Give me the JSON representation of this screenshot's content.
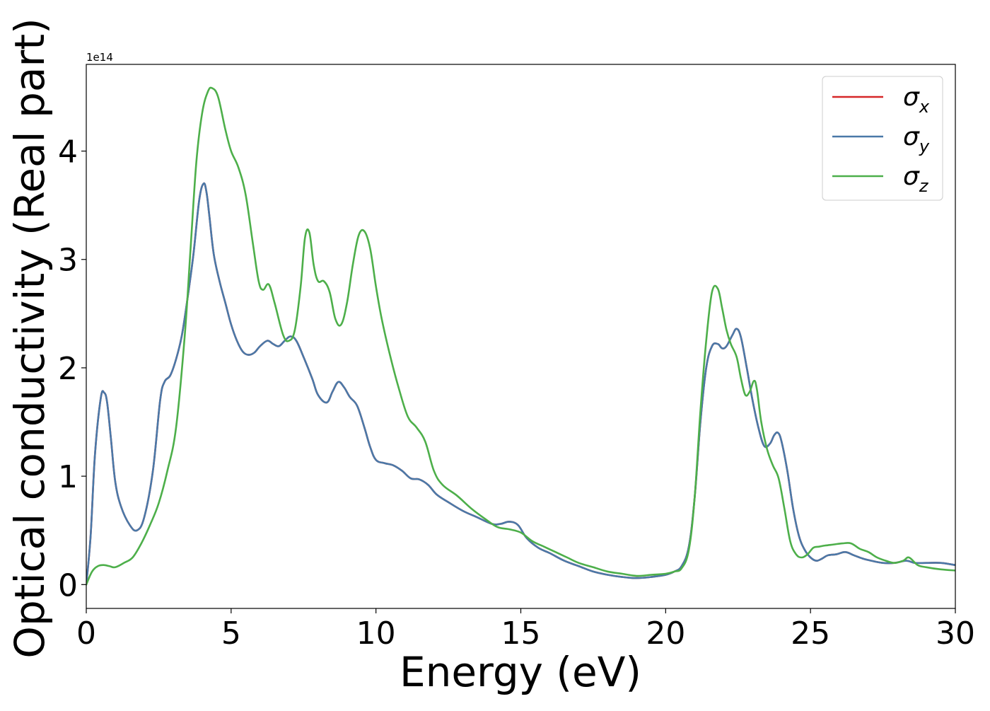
{
  "chart_data": {
    "type": "line",
    "xlabel": "Energy (eV)",
    "ylabel": "Optical conductivity (Real part)",
    "offset_text": "1e14",
    "scale": 100000000000000.0,
    "xlim": [
      0,
      30
    ],
    "ylim": [
      -0.22,
      4.8
    ],
    "xticks": [
      0,
      5,
      10,
      15,
      20,
      25,
      30
    ],
    "xtick_labels": [
      "0",
      "5",
      "10",
      "15",
      "20",
      "25",
      "30"
    ],
    "yticks": [
      0,
      1,
      2,
      3,
      4
    ],
    "ytick_labels": [
      "0",
      "1",
      "2",
      "3",
      "4"
    ],
    "grid": false,
    "legend_position": "top-right",
    "series": [
      {
        "name": "σx",
        "legend_base": "σ",
        "legend_sub": "x",
        "color": "#d62728",
        "x": [
          0,
          0.15,
          0.3,
          0.5,
          0.62,
          0.72,
          0.85,
          1.0,
          1.2,
          1.5,
          1.75,
          2.0,
          2.3,
          2.55,
          2.7,
          2.9,
          3.1,
          3.3,
          3.5,
          3.7,
          3.9,
          4.05,
          4.15,
          4.25,
          4.4,
          4.6,
          4.8,
          5.0,
          5.2,
          5.4,
          5.6,
          5.8,
          6.0,
          6.25,
          6.45,
          6.65,
          6.85,
          7.05,
          7.25,
          7.5,
          7.8,
          8.0,
          8.3,
          8.5,
          8.7,
          8.9,
          9.1,
          9.35,
          9.6,
          9.8,
          10.0,
          10.3,
          10.6,
          10.9,
          11.2,
          11.5,
          11.8,
          12.1,
          12.5,
          13.0,
          13.5,
          14.0,
          14.3,
          14.6,
          14.9,
          15.2,
          15.6,
          16.0,
          16.5,
          17.0,
          17.5,
          18.0,
          18.5,
          19.0,
          19.5,
          20.0,
          20.3,
          20.55,
          20.8,
          21.0,
          21.2,
          21.4,
          21.6,
          21.8,
          21.95,
          22.1,
          22.3,
          22.45,
          22.6,
          22.8,
          23.0,
          23.2,
          23.4,
          23.6,
          23.75,
          23.88,
          24.0,
          24.2,
          24.4,
          24.6,
          24.8,
          25.0,
          25.2,
          25.4,
          25.6,
          25.9,
          26.2,
          26.5,
          26.8,
          27.1,
          27.5,
          27.9,
          28.3,
          28.6,
          29.0,
          29.5,
          30.0
        ],
        "y": [
          0,
          0.45,
          1.2,
          1.72,
          1.77,
          1.68,
          1.35,
          0.95,
          0.72,
          0.55,
          0.5,
          0.62,
          1.05,
          1.7,
          1.87,
          1.93,
          2.08,
          2.3,
          2.65,
          3.05,
          3.55,
          3.7,
          3.62,
          3.4,
          3.05,
          2.8,
          2.6,
          2.4,
          2.25,
          2.15,
          2.12,
          2.14,
          2.2,
          2.25,
          2.22,
          2.2,
          2.25,
          2.29,
          2.25,
          2.1,
          1.9,
          1.75,
          1.68,
          1.78,
          1.87,
          1.82,
          1.73,
          1.65,
          1.45,
          1.27,
          1.15,
          1.12,
          1.1,
          1.05,
          0.98,
          0.97,
          0.92,
          0.83,
          0.76,
          0.68,
          0.62,
          0.56,
          0.56,
          0.58,
          0.55,
          0.43,
          0.34,
          0.29,
          0.22,
          0.17,
          0.12,
          0.09,
          0.07,
          0.06,
          0.07,
          0.09,
          0.12,
          0.17,
          0.35,
          0.8,
          1.5,
          2.0,
          2.2,
          2.22,
          2.18,
          2.2,
          2.3,
          2.36,
          2.28,
          2.0,
          1.7,
          1.45,
          1.28,
          1.3,
          1.38,
          1.4,
          1.32,
          1.05,
          0.7,
          0.45,
          0.32,
          0.25,
          0.22,
          0.24,
          0.27,
          0.28,
          0.3,
          0.27,
          0.24,
          0.22,
          0.2,
          0.2,
          0.22,
          0.2,
          0.2,
          0.2,
          0.18
        ]
      },
      {
        "name": "σy",
        "legend_base": "σ",
        "legend_sub": "y",
        "color": "#4a79a8",
        "x": [
          0,
          0.15,
          0.3,
          0.5,
          0.62,
          0.72,
          0.85,
          1.0,
          1.2,
          1.5,
          1.75,
          2.0,
          2.3,
          2.55,
          2.7,
          2.9,
          3.1,
          3.3,
          3.5,
          3.7,
          3.9,
          4.05,
          4.15,
          4.25,
          4.4,
          4.6,
          4.8,
          5.0,
          5.2,
          5.4,
          5.6,
          5.8,
          6.0,
          6.25,
          6.45,
          6.65,
          6.85,
          7.05,
          7.25,
          7.5,
          7.8,
          8.0,
          8.3,
          8.5,
          8.7,
          8.9,
          9.1,
          9.35,
          9.6,
          9.8,
          10.0,
          10.3,
          10.6,
          10.9,
          11.2,
          11.5,
          11.8,
          12.1,
          12.5,
          13.0,
          13.5,
          14.0,
          14.3,
          14.6,
          14.9,
          15.2,
          15.6,
          16.0,
          16.5,
          17.0,
          17.5,
          18.0,
          18.5,
          19.0,
          19.5,
          20.0,
          20.3,
          20.55,
          20.8,
          21.0,
          21.2,
          21.4,
          21.6,
          21.8,
          21.95,
          22.1,
          22.3,
          22.45,
          22.6,
          22.8,
          23.0,
          23.2,
          23.4,
          23.6,
          23.75,
          23.88,
          24.0,
          24.2,
          24.4,
          24.6,
          24.8,
          25.0,
          25.2,
          25.4,
          25.6,
          25.9,
          26.2,
          26.5,
          26.8,
          27.1,
          27.5,
          27.9,
          28.3,
          28.6,
          29.0,
          29.5,
          30.0
        ],
        "y": [
          0,
          0.45,
          1.2,
          1.72,
          1.77,
          1.68,
          1.35,
          0.95,
          0.72,
          0.55,
          0.5,
          0.62,
          1.05,
          1.7,
          1.87,
          1.93,
          2.08,
          2.3,
          2.65,
          3.05,
          3.55,
          3.7,
          3.62,
          3.4,
          3.05,
          2.8,
          2.6,
          2.4,
          2.25,
          2.15,
          2.12,
          2.14,
          2.2,
          2.25,
          2.22,
          2.2,
          2.25,
          2.29,
          2.25,
          2.1,
          1.9,
          1.75,
          1.68,
          1.78,
          1.87,
          1.82,
          1.73,
          1.65,
          1.45,
          1.27,
          1.15,
          1.12,
          1.1,
          1.05,
          0.98,
          0.97,
          0.92,
          0.83,
          0.76,
          0.68,
          0.62,
          0.56,
          0.56,
          0.58,
          0.55,
          0.43,
          0.34,
          0.29,
          0.22,
          0.17,
          0.12,
          0.09,
          0.07,
          0.06,
          0.07,
          0.09,
          0.12,
          0.17,
          0.35,
          0.8,
          1.5,
          2.0,
          2.2,
          2.22,
          2.18,
          2.2,
          2.3,
          2.36,
          2.28,
          2.0,
          1.7,
          1.45,
          1.28,
          1.3,
          1.38,
          1.4,
          1.32,
          1.05,
          0.7,
          0.45,
          0.32,
          0.25,
          0.22,
          0.24,
          0.27,
          0.28,
          0.3,
          0.27,
          0.24,
          0.22,
          0.2,
          0.2,
          0.22,
          0.2,
          0.2,
          0.2,
          0.18
        ]
      },
      {
        "name": "σz",
        "legend_base": "σ",
        "legend_sub": "z",
        "color": "#4daf4a",
        "x": [
          0,
          0.2,
          0.4,
          0.6,
          0.8,
          1.0,
          1.3,
          1.6,
          1.9,
          2.2,
          2.5,
          2.8,
          3.1,
          3.4,
          3.6,
          3.8,
          4.0,
          4.2,
          4.35,
          4.55,
          4.8,
          5.0,
          5.25,
          5.5,
          5.75,
          5.95,
          6.1,
          6.3,
          6.5,
          6.8,
          7.0,
          7.2,
          7.4,
          7.55,
          7.7,
          7.85,
          8.0,
          8.2,
          8.4,
          8.6,
          8.8,
          9.0,
          9.2,
          9.4,
          9.6,
          9.8,
          10.0,
          10.2,
          10.5,
          10.8,
          11.1,
          11.4,
          11.7,
          12.0,
          12.3,
          12.8,
          13.3,
          13.8,
          14.2,
          14.6,
          15.0,
          15.4,
          15.8,
          16.2,
          16.6,
          17.0,
          17.5,
          18.0,
          18.5,
          19.0,
          19.5,
          20.0,
          20.3,
          20.55,
          20.8,
          21.0,
          21.2,
          21.4,
          21.6,
          21.8,
          21.95,
          22.1,
          22.25,
          22.45,
          22.6,
          22.75,
          22.9,
          23.05,
          23.15,
          23.3,
          23.5,
          23.7,
          23.9,
          24.1,
          24.3,
          24.5,
          24.7,
          24.9,
          25.1,
          25.3,
          25.5,
          25.8,
          26.1,
          26.4,
          26.7,
          27.0,
          27.3,
          27.6,
          27.9,
          28.2,
          28.4,
          28.7,
          29.0,
          29.5,
          30.0
        ],
        "y": [
          0,
          0.12,
          0.17,
          0.18,
          0.17,
          0.16,
          0.2,
          0.25,
          0.38,
          0.55,
          0.75,
          1.05,
          1.45,
          2.3,
          3.1,
          3.9,
          4.35,
          4.55,
          4.58,
          4.5,
          4.2,
          4.0,
          3.85,
          3.6,
          3.15,
          2.8,
          2.72,
          2.77,
          2.6,
          2.3,
          2.25,
          2.35,
          2.75,
          3.2,
          3.25,
          2.95,
          2.8,
          2.8,
          2.7,
          2.45,
          2.4,
          2.6,
          2.95,
          3.22,
          3.26,
          3.1,
          2.75,
          2.45,
          2.1,
          1.8,
          1.55,
          1.45,
          1.32,
          1.05,
          0.92,
          0.82,
          0.7,
          0.6,
          0.53,
          0.51,
          0.48,
          0.4,
          0.35,
          0.3,
          0.25,
          0.2,
          0.16,
          0.12,
          0.1,
          0.08,
          0.09,
          0.1,
          0.12,
          0.15,
          0.32,
          0.8,
          1.6,
          2.25,
          2.7,
          2.73,
          2.55,
          2.35,
          2.22,
          2.1,
          1.9,
          1.75,
          1.78,
          1.88,
          1.8,
          1.5,
          1.25,
          1.1,
          0.98,
          0.7,
          0.4,
          0.28,
          0.25,
          0.28,
          0.34,
          0.35,
          0.36,
          0.37,
          0.38,
          0.38,
          0.33,
          0.3,
          0.25,
          0.22,
          0.2,
          0.22,
          0.25,
          0.18,
          0.16,
          0.14,
          0.13
        ]
      }
    ]
  }
}
